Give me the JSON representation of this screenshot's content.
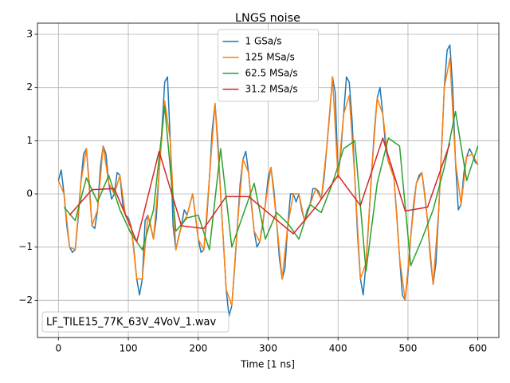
{
  "chart_data": {
    "type": "line",
    "title": "LNGS noise",
    "x_label": "Time [1 ns]",
    "annotation": "LF_TILE15_77K_63V_4VoV_1.wav",
    "xlim": [
      -30,
      630
    ],
    "ylim": [
      -2.7,
      3.21
    ],
    "xticks": [
      0,
      100,
      200,
      300,
      400,
      500,
      600
    ],
    "yticks": [
      -2,
      -1,
      0,
      1,
      2,
      3
    ],
    "grid": true,
    "legend": "upper center",
    "series": [
      {
        "name": "1 GSa/s",
        "color": "#1f77b4",
        "x": [
          0,
          4,
          8,
          12,
          16,
          20,
          24,
          28,
          32,
          36,
          40,
          44,
          48,
          52,
          56,
          60,
          64,
          68,
          72,
          76,
          80,
          84,
          88,
          92,
          96,
          100,
          104,
          108,
          112,
          116,
          120,
          124,
          128,
          132,
          136,
          140,
          144,
          148,
          152,
          156,
          160,
          164,
          168,
          172,
          176,
          180,
          184,
          188,
          192,
          196,
          200,
          204,
          208,
          212,
          216,
          220,
          224,
          228,
          232,
          236,
          240,
          244,
          248,
          252,
          256,
          260,
          264,
          268,
          272,
          276,
          280,
          284,
          288,
          292,
          296,
          300,
          304,
          308,
          312,
          316,
          320,
          324,
          328,
          332,
          336,
          340,
          344,
          348,
          352,
          356,
          360,
          364,
          368,
          372,
          376,
          380,
          384,
          388,
          392,
          396,
          400,
          404,
          408,
          412,
          416,
          420,
          424,
          428,
          432,
          436,
          440,
          444,
          448,
          452,
          456,
          460,
          464,
          468,
          472,
          476,
          480,
          484,
          488,
          492,
          496,
          500,
          504,
          508,
          512,
          516,
          520,
          524,
          528,
          532,
          536,
          540,
          544,
          548,
          552,
          556,
          560,
          564,
          568,
          572,
          576,
          580,
          584,
          588,
          592,
          596,
          600
        ],
        "values": [
          0.25,
          0.45,
          0.0,
          -0.6,
          -1.0,
          -1.1,
          -1.05,
          -0.5,
          0.2,
          0.75,
          0.85,
          0.2,
          -0.6,
          -0.65,
          -0.3,
          0.5,
          0.9,
          0.75,
          0.2,
          -0.1,
          0.0,
          0.4,
          0.35,
          -0.2,
          -0.4,
          -0.45,
          -0.6,
          -1.05,
          -1.6,
          -1.9,
          -1.6,
          -0.5,
          -0.4,
          -0.6,
          -0.85,
          -0.45,
          0.4,
          1.2,
          2.1,
          2.2,
          1.0,
          -0.6,
          -1.05,
          -0.8,
          -0.6,
          -0.3,
          -0.4,
          -0.2,
          0.0,
          -0.4,
          -0.85,
          -1.1,
          -1.05,
          -0.5,
          0.3,
          1.2,
          1.7,
          1.0,
          0.0,
          -0.9,
          -1.8,
          -2.3,
          -2.1,
          -1.4,
          -0.6,
          0.2,
          0.65,
          0.8,
          0.4,
          -0.2,
          -0.7,
          -1.0,
          -0.9,
          -0.6,
          -0.2,
          0.3,
          0.5,
          0.1,
          -0.5,
          -1.2,
          -1.6,
          -1.4,
          -0.6,
          0.0,
          0.0,
          -0.15,
          0.0,
          -0.3,
          -0.5,
          -0.3,
          -0.2,
          0.1,
          0.1,
          0.05,
          -0.1,
          0.3,
          0.9,
          1.5,
          2.2,
          1.9,
          0.3,
          0.8,
          1.5,
          2.2,
          2.1,
          1.4,
          0.3,
          -0.8,
          -1.6,
          -1.9,
          -1.3,
          -0.5,
          0.4,
          1.2,
          1.8,
          2.0,
          1.5,
          0.9,
          0.6,
          0.55,
          0.3,
          -0.4,
          -1.2,
          -1.9,
          -2.0,
          -1.5,
          -0.8,
          -0.2,
          0.2,
          0.35,
          0.4,
          0.0,
          -0.5,
          -1.2,
          -1.7,
          -1.3,
          -0.3,
          0.8,
          2.0,
          2.7,
          2.8,
          2.0,
          0.6,
          -0.3,
          -0.2,
          0.4,
          0.7,
          0.85,
          0.75,
          0.6,
          0.55
        ]
      },
      {
        "name": "125 MSa/s",
        "color": "#ff7f0e",
        "x": [
          0,
          8,
          16,
          24,
          32,
          40,
          48,
          56,
          64,
          72,
          80,
          88,
          96,
          104,
          112,
          120,
          128,
          136,
          144,
          152,
          160,
          168,
          176,
          184,
          192,
          200,
          208,
          216,
          224,
          232,
          240,
          248,
          256,
          264,
          272,
          280,
          288,
          296,
          304,
          312,
          320,
          328,
          336,
          344,
          352,
          360,
          368,
          376,
          384,
          392,
          400,
          408,
          416,
          424,
          432,
          440,
          448,
          456,
          464,
          472,
          480,
          488,
          496,
          504,
          512,
          520,
          528,
          536,
          544,
          552,
          560,
          568,
          576,
          584,
          592,
          600
        ],
        "values": [
          0.25,
          0.0,
          -1.0,
          -1.05,
          0.2,
          0.85,
          -0.6,
          -0.3,
          0.9,
          0.2,
          0.0,
          0.35,
          -0.4,
          -0.6,
          -1.6,
          -1.6,
          -0.4,
          -0.85,
          0.4,
          1.75,
          1.0,
          -1.05,
          -0.6,
          -0.4,
          0.0,
          -0.85,
          -1.05,
          0.3,
          1.7,
          0.0,
          -1.8,
          -2.1,
          -0.6,
          0.65,
          0.4,
          -0.7,
          -0.9,
          -0.2,
          0.5,
          -0.5,
          -1.6,
          -0.6,
          0.0,
          0.0,
          -0.5,
          -0.2,
          0.1,
          -0.1,
          0.9,
          2.2,
          0.3,
          1.5,
          1.85,
          0.3,
          -1.6,
          -1.3,
          0.4,
          1.8,
          1.5,
          0.6,
          0.3,
          -1.2,
          -2.0,
          -0.8,
          0.2,
          0.4,
          -0.5,
          -1.7,
          -0.3,
          2.0,
          2.55,
          0.6,
          -0.2,
          0.7,
          0.75,
          0.55
        ]
      },
      {
        "name": "62.5 MSa/s",
        "color": "#2ca02c",
        "x": [
          8,
          24,
          40,
          56,
          72,
          88,
          104,
          120,
          136,
          152,
          168,
          184,
          200,
          216,
          232,
          248,
          264,
          280,
          296,
          312,
          328,
          344,
          360,
          376,
          392,
          408,
          424,
          440,
          456,
          472,
          488,
          504,
          520,
          536,
          552,
          568,
          584,
          600
        ],
        "values": [
          -0.25,
          -0.5,
          0.3,
          -0.15,
          0.35,
          -0.3,
          -0.75,
          -1.05,
          -0.3,
          1.65,
          -0.7,
          -0.45,
          -0.4,
          -1.05,
          0.85,
          -1.0,
          -0.4,
          0.2,
          -0.85,
          -0.35,
          -0.55,
          -0.85,
          -0.2,
          -0.35,
          0.2,
          0.85,
          1.0,
          -1.45,
          0.2,
          1.05,
          0.9,
          -1.35,
          -0.85,
          -0.3,
          0.5,
          1.55,
          0.25,
          0.9
        ]
      },
      {
        "name": "31.2 MSa/s",
        "color": "#d62728",
        "x": [
          16,
          48,
          80,
          112,
          144,
          176,
          208,
          240,
          272,
          304,
          336,
          368,
          400,
          432,
          464,
          496,
          528,
          560
        ],
        "values": [
          -0.4,
          0.08,
          0.1,
          -0.9,
          0.8,
          -0.6,
          -0.65,
          -0.05,
          -0.05,
          -0.4,
          -0.75,
          -0.25,
          0.35,
          -0.22,
          1.05,
          -0.32,
          -0.25,
          0.95
        ]
      }
    ]
  }
}
